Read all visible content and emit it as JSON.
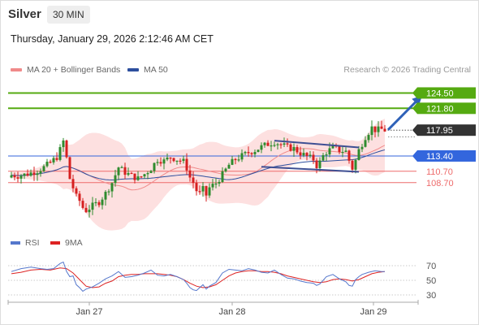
{
  "header": {
    "instrument": "Silver",
    "interval": "30 MIN",
    "datetime": "Thursday, January 29, 2026 2:12:46 AM CET"
  },
  "legend": {
    "ma20_label": "MA 20 + Bollinger Bands",
    "ma50_label": "MA 50",
    "credit": "Research © 2026 Trading Central"
  },
  "rsi_legend": {
    "rsi_label": "RSI",
    "ma_label": "9MA"
  },
  "colors": {
    "up": "#2e8b2e",
    "down": "#d62020",
    "ma20": "#f08a8a",
    "band": "#fde0e0",
    "ma50": "#2d4f9e",
    "resistance": "#55aa11",
    "pivot": "#3366dd",
    "support": "#ee6b6b",
    "last": "#333333",
    "rsi": "#5577cc",
    "rsi_ma": "#dd2222"
  },
  "chart_data": [
    {
      "type": "candlestick",
      "x_ticks": [
        "Jan 27",
        "Jan 28",
        "Jan 29"
      ],
      "ylim": [
        100.5,
        127
      ],
      "last_price": 117.95,
      "levels": [
        {
          "value": 124.5,
          "label": "124.50",
          "kind": "resistance"
        },
        {
          "value": 121.8,
          "label": "121.80",
          "kind": "resistance"
        },
        {
          "value": 117.95,
          "label": "117.95",
          "kind": "last"
        },
        {
          "value": 113.4,
          "label": "113.40",
          "kind": "pivot"
        },
        {
          "value": 110.7,
          "label": "110.70",
          "kind": "support"
        },
        {
          "value": 108.7,
          "label": "108.70",
          "kind": "support"
        }
      ],
      "close_path": [
        [
          0,
          110.0
        ],
        [
          2,
          109.9
        ],
        [
          4,
          110.1
        ],
        [
          6,
          110.4
        ],
        [
          8,
          110.8
        ],
        [
          10,
          111.4
        ],
        [
          12,
          112.2
        ],
        [
          14,
          113.2
        ],
        [
          15,
          114.5
        ],
        [
          16,
          116.0
        ],
        [
          17,
          113.0
        ],
        [
          18,
          109.4
        ],
        [
          19,
          107.8
        ],
        [
          20,
          106.2
        ],
        [
          21,
          105.5
        ],
        [
          22,
          104.3
        ],
        [
          23,
          103.8
        ],
        [
          25,
          104.6
        ],
        [
          27,
          105.3
        ],
        [
          29,
          106.8
        ],
        [
          31,
          108.7
        ],
        [
          33,
          111.4
        ],
        [
          35,
          110.5
        ],
        [
          37,
          109.9
        ],
        [
          39,
          109.4
        ],
        [
          41,
          110.2
        ],
        [
          43,
          111.2
        ],
        [
          44,
          112.0
        ],
        [
          45,
          112.8
        ],
        [
          47,
          112.5
        ],
        [
          49,
          113.2
        ],
        [
          51,
          112.8
        ],
        [
          53,
          112.4
        ],
        [
          54,
          111.3
        ],
        [
          55,
          109.6
        ],
        [
          56,
          108.7
        ],
        [
          57,
          107.3
        ],
        [
          58,
          106.8
        ],
        [
          59,
          107.5
        ],
        [
          60,
          106.5
        ],
        [
          61,
          107.8
        ],
        [
          63,
          108.6
        ],
        [
          65,
          110.1
        ],
        [
          67,
          111.8
        ],
        [
          69,
          112.8
        ],
        [
          71,
          113.4
        ],
        [
          73,
          114.0
        ],
        [
          75,
          114.4
        ],
        [
          77,
          115.0
        ],
        [
          79,
          115.5
        ],
        [
          81,
          115.9
        ],
        [
          83,
          115.4
        ],
        [
          85,
          114.9
        ],
        [
          87,
          114.7
        ],
        [
          89,
          113.9
        ],
        [
          91,
          113.3
        ],
        [
          93,
          112.8
        ],
        [
          94,
          111.7
        ],
        [
          95,
          112.3
        ],
        [
          96,
          113.4
        ],
        [
          97,
          114.1
        ],
        [
          99,
          114.8
        ],
        [
          101,
          114.4
        ],
        [
          103,
          114.2
        ],
        [
          104,
          112.6
        ],
        [
          105,
          111.2
        ],
        [
          106,
          112.6
        ],
        [
          107,
          114.4
        ],
        [
          108,
          115.6
        ],
        [
          109,
          116.8
        ],
        [
          110,
          117.6
        ],
        [
          111,
          118.4
        ],
        [
          112,
          118.0
        ],
        [
          113,
          118.0
        ],
        [
          114,
          118.1
        ],
        [
          115,
          117.95
        ]
      ],
      "channel": {
        "upper": [
          [
            81,
            116.1
          ],
          [
            107,
            114.9
          ]
        ],
        "lower": [
          [
            77,
            111.5
          ],
          [
            107,
            110.6
          ]
        ]
      },
      "projection": [
        [
          116,
          118.0
        ],
        [
          127,
          124.5
        ]
      ]
    },
    {
      "type": "line",
      "name": "RSI",
      "y_ticks": [
        70,
        50,
        30
      ],
      "ylim": [
        20,
        80
      ],
      "rsi": [
        [
          0,
          62
        ],
        [
          3,
          66
        ],
        [
          6,
          68
        ],
        [
          9,
          66
        ],
        [
          11,
          65
        ],
        [
          13,
          66
        ],
        [
          15,
          73
        ],
        [
          16,
          75
        ],
        [
          17,
          62
        ],
        [
          18,
          55
        ],
        [
          19,
          56
        ],
        [
          20,
          44
        ],
        [
          21,
          40
        ],
        [
          22,
          35
        ],
        [
          23,
          38
        ],
        [
          25,
          41
        ],
        [
          27,
          46
        ],
        [
          29,
          52
        ],
        [
          31,
          56
        ],
        [
          33,
          62
        ],
        [
          35,
          54
        ],
        [
          37,
          55
        ],
        [
          39,
          57
        ],
        [
          41,
          60
        ],
        [
          43,
          64
        ],
        [
          45,
          57
        ],
        [
          47,
          56
        ],
        [
          49,
          58
        ],
        [
          51,
          55
        ],
        [
          53,
          51
        ],
        [
          54,
          46
        ],
        [
          55,
          40
        ],
        [
          56,
          37
        ],
        [
          57,
          36
        ],
        [
          58,
          40
        ],
        [
          59,
          44
        ],
        [
          60,
          38
        ],
        [
          61,
          42
        ],
        [
          63,
          47
        ],
        [
          65,
          60
        ],
        [
          67,
          65
        ],
        [
          69,
          64
        ],
        [
          71,
          63
        ],
        [
          73,
          66
        ],
        [
          75,
          64
        ],
        [
          77,
          61
        ],
        [
          79,
          60
        ],
        [
          81,
          64
        ],
        [
          83,
          58
        ],
        [
          85,
          53
        ],
        [
          87,
          52
        ],
        [
          89,
          49
        ],
        [
          91,
          47
        ],
        [
          93,
          46
        ],
        [
          94,
          43
        ],
        [
          95,
          45
        ],
        [
          97,
          55
        ],
        [
          99,
          58
        ],
        [
          101,
          52
        ],
        [
          103,
          48
        ],
        [
          104,
          43
        ],
        [
          105,
          42
        ],
        [
          106,
          51
        ],
        [
          107,
          55
        ],
        [
          108,
          58
        ],
        [
          110,
          61
        ],
        [
          112,
          63
        ],
        [
          114,
          62
        ],
        [
          115,
          62
        ]
      ],
      "rsi_ma": [
        [
          0,
          59
        ],
        [
          3,
          61
        ],
        [
          6,
          64
        ],
        [
          9,
          65
        ],
        [
          12,
          64
        ],
        [
          15,
          67
        ],
        [
          17,
          66
        ],
        [
          19,
          60
        ],
        [
          21,
          51
        ],
        [
          23,
          42
        ],
        [
          25,
          40
        ],
        [
          27,
          41
        ],
        [
          29,
          46
        ],
        [
          31,
          49
        ],
        [
          33,
          55
        ],
        [
          35,
          57
        ],
        [
          37,
          58
        ],
        [
          39,
          58
        ],
        [
          41,
          59
        ],
        [
          43,
          59
        ],
        [
          45,
          59
        ],
        [
          47,
          58
        ],
        [
          49,
          57
        ],
        [
          51,
          55
        ],
        [
          53,
          51
        ],
        [
          55,
          46
        ],
        [
          57,
          42
        ],
        [
          59,
          40
        ],
        [
          61,
          41
        ],
        [
          63,
          44
        ],
        [
          65,
          50
        ],
        [
          67,
          56
        ],
        [
          69,
          60
        ],
        [
          71,
          62
        ],
        [
          73,
          63
        ],
        [
          75,
          63
        ],
        [
          77,
          62
        ],
        [
          79,
          62
        ],
        [
          81,
          61
        ],
        [
          83,
          59
        ],
        [
          85,
          56
        ],
        [
          87,
          54
        ],
        [
          89,
          52
        ],
        [
          91,
          50
        ],
        [
          93,
          48
        ],
        [
          95,
          47
        ],
        [
          97,
          48
        ],
        [
          99,
          51
        ],
        [
          101,
          52
        ],
        [
          103,
          51
        ],
        [
          105,
          49
        ],
        [
          107,
          51
        ],
        [
          109,
          55
        ],
        [
          111,
          59
        ],
        [
          113,
          61
        ],
        [
          115,
          62
        ]
      ]
    }
  ]
}
